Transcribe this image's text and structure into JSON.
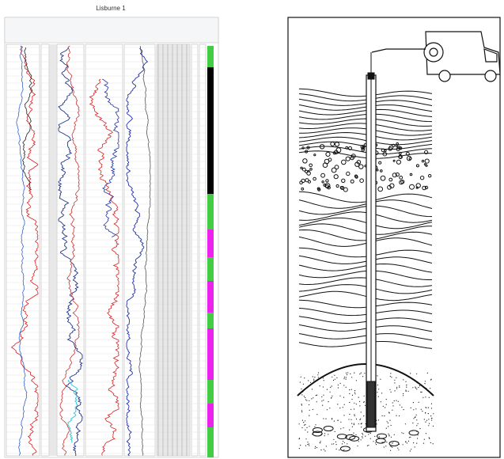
{
  "log_panel": {
    "title": "Lisburne 1"
  }
}
